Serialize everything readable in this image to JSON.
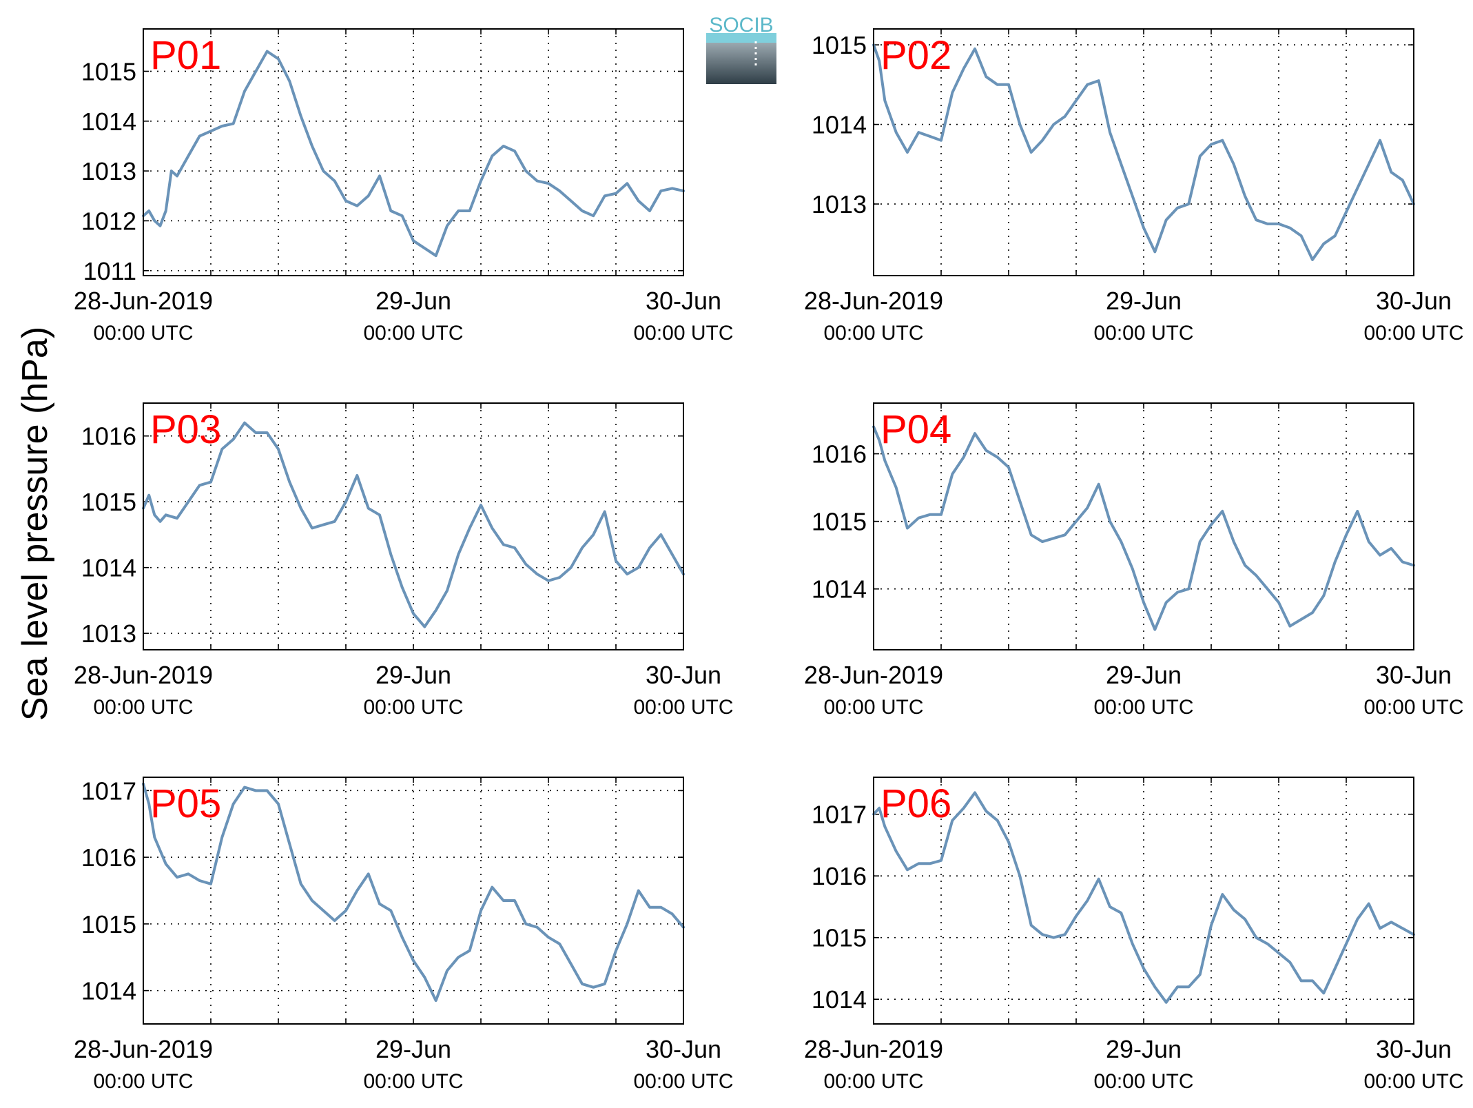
{
  "logo": {
    "text": "SOCIB"
  },
  "ylabel": "Sea level pressure (hPa)",
  "colors": {
    "series": "#6a93b8",
    "panel_label": "#ff0000",
    "axis": "#000000"
  },
  "x_ticks": [
    {
      "line1": "28-Jun-2019",
      "line2": "00:00 UTC"
    },
    {
      "line1": "29-Jun",
      "line2": "00:00 UTC"
    },
    {
      "line1": "30-Jun",
      "line2": "00:00 UTC"
    }
  ],
  "chart_data": [
    {
      "type": "line",
      "label": "P01",
      "xlim": [
        "2019-06-28 00:00",
        "2019-06-30 00:00"
      ],
      "x_unit": "hours since 2019-06-28 00:00 UTC",
      "ylim": [
        1010.9,
        1015.85
      ],
      "yticks": [
        1011,
        1012,
        1013,
        1014,
        1015
      ],
      "grid": true,
      "ylabel": "Sea level pressure (hPa)",
      "x": [
        0,
        0.5,
        1,
        1.5,
        2,
        2.5,
        3,
        4,
        5,
        6,
        7,
        8,
        9,
        10,
        11,
        12,
        13,
        14,
        15,
        16,
        17,
        18,
        19,
        20,
        21,
        22,
        23,
        24,
        25,
        26,
        27,
        28,
        29,
        30,
        31,
        32,
        33,
        34,
        35,
        36,
        37,
        38,
        39,
        40,
        41,
        42,
        43,
        44,
        45,
        46,
        47,
        48
      ],
      "values": [
        1012.1,
        1012.2,
        1012.0,
        1011.9,
        1012.2,
        1013.0,
        1012.9,
        1013.3,
        1013.7,
        1013.8,
        1013.9,
        1013.95,
        1014.6,
        1015.0,
        1015.4,
        1015.25,
        1014.8,
        1014.1,
        1013.5,
        1013.0,
        1012.8,
        1012.4,
        1012.3,
        1012.5,
        1012.9,
        1012.2,
        1012.1,
        1011.6,
        1011.45,
        1011.3,
        1011.9,
        1012.2,
        1012.2,
        1012.8,
        1013.3,
        1013.5,
        1013.4,
        1013.0,
        1012.8,
        1012.75,
        1012.6,
        1012.4,
        1012.2,
        1012.1,
        1012.5,
        1012.55,
        1012.75,
        1012.4,
        1012.2,
        1012.6,
        1012.65,
        1012.6
      ]
    },
    {
      "type": "line",
      "label": "P02",
      "xlim": [
        "2019-06-28 00:00",
        "2019-06-30 00:00"
      ],
      "x_unit": "hours since 2019-06-28 00:00 UTC",
      "ylim": [
        1012.1,
        1015.2
      ],
      "yticks": [
        1013,
        1014,
        1015
      ],
      "grid": true,
      "ylabel": "Sea level pressure (hPa)",
      "x": [
        0,
        0.5,
        1,
        2,
        3,
        4,
        5,
        6,
        7,
        8,
        9,
        10,
        11,
        12,
        13,
        14,
        15,
        16,
        17,
        18,
        19,
        20,
        21,
        22,
        23,
        24,
        25,
        26,
        27,
        28,
        29,
        30,
        31,
        32,
        33,
        34,
        35,
        36,
        37,
        38,
        39,
        40,
        41,
        42,
        43,
        44,
        45,
        46,
        47,
        48
      ],
      "values": [
        1015.0,
        1014.8,
        1014.3,
        1013.9,
        1013.65,
        1013.9,
        1013.85,
        1013.8,
        1014.4,
        1014.7,
        1014.95,
        1014.6,
        1014.5,
        1014.5,
        1014.0,
        1013.65,
        1013.8,
        1014.0,
        1014.1,
        1014.3,
        1014.5,
        1014.55,
        1013.9,
        1013.5,
        1013.1,
        1012.7,
        1012.4,
        1012.8,
        1012.95,
        1013.0,
        1013.6,
        1013.75,
        1013.8,
        1013.5,
        1013.1,
        1012.8,
        1012.75,
        1012.75,
        1012.7,
        1012.6,
        1012.3,
        1012.5,
        1012.6,
        1012.9,
        1013.2,
        1013.5,
        1013.8,
        1013.4,
        1013.3,
        1013.0
      ]
    },
    {
      "type": "line",
      "label": "P03",
      "xlim": [
        "2019-06-28 00:00",
        "2019-06-30 00:00"
      ],
      "x_unit": "hours since 2019-06-28 00:00 UTC",
      "ylim": [
        1012.75,
        1016.5
      ],
      "yticks": [
        1013,
        1014,
        1015,
        1016
      ],
      "grid": true,
      "ylabel": "Sea level pressure (hPa)",
      "x": [
        0,
        0.5,
        1,
        1.5,
        2,
        3,
        4,
        5,
        6,
        7,
        8,
        9,
        10,
        11,
        12,
        13,
        14,
        15,
        16,
        17,
        18,
        19,
        20,
        21,
        22,
        23,
        24,
        25,
        26,
        27,
        28,
        29,
        30,
        31,
        32,
        33,
        34,
        35,
        36,
        37,
        38,
        39,
        40,
        41,
        42,
        43,
        44,
        45,
        46,
        47,
        48
      ],
      "values": [
        1014.9,
        1015.1,
        1014.8,
        1014.7,
        1014.8,
        1014.75,
        1015.0,
        1015.25,
        1015.3,
        1015.8,
        1015.95,
        1016.2,
        1016.05,
        1016.05,
        1015.8,
        1015.3,
        1014.9,
        1014.6,
        1014.65,
        1014.7,
        1015.0,
        1015.4,
        1014.9,
        1014.8,
        1014.2,
        1013.7,
        1013.3,
        1013.1,
        1013.35,
        1013.65,
        1014.2,
        1014.6,
        1014.95,
        1014.6,
        1014.35,
        1014.3,
        1014.05,
        1013.9,
        1013.8,
        1013.85,
        1014.0,
        1014.3,
        1014.5,
        1014.85,
        1014.1,
        1013.9,
        1014.0,
        1014.3,
        1014.5,
        1014.2,
        1013.9
      ]
    },
    {
      "type": "line",
      "label": "P04",
      "xlim": [
        "2019-06-28 00:00",
        "2019-06-30 00:00"
      ],
      "x_unit": "hours since 2019-06-28 00:00 UTC",
      "ylim": [
        1013.1,
        1016.75
      ],
      "yticks": [
        1014,
        1015,
        1016
      ],
      "grid": true,
      "ylabel": "Sea level pressure (hPa)",
      "x": [
        0,
        0.5,
        1,
        2,
        3,
        4,
        5,
        6,
        7,
        8,
        9,
        10,
        11,
        12,
        13,
        14,
        15,
        16,
        17,
        18,
        19,
        20,
        21,
        22,
        23,
        24,
        25,
        26,
        27,
        28,
        29,
        30,
        31,
        32,
        33,
        34,
        35,
        36,
        37,
        38,
        39,
        40,
        41,
        42,
        43,
        44,
        45,
        46,
        47,
        48
      ],
      "values": [
        1016.4,
        1016.2,
        1015.9,
        1015.5,
        1014.9,
        1015.05,
        1015.1,
        1015.1,
        1015.7,
        1015.95,
        1016.3,
        1016.05,
        1015.95,
        1015.8,
        1015.3,
        1014.8,
        1014.7,
        1014.75,
        1014.8,
        1015.0,
        1015.2,
        1015.55,
        1015.0,
        1014.7,
        1014.3,
        1013.8,
        1013.4,
        1013.8,
        1013.95,
        1014.0,
        1014.7,
        1014.95,
        1015.15,
        1014.7,
        1014.35,
        1014.2,
        1014.0,
        1013.8,
        1013.45,
        1013.55,
        1013.65,
        1013.9,
        1014.4,
        1014.8,
        1015.15,
        1014.7,
        1014.5,
        1014.6,
        1014.4,
        1014.35
      ]
    },
    {
      "type": "line",
      "label": "P05",
      "xlim": [
        "2019-06-28 00:00",
        "2019-06-30 00:00"
      ],
      "x_unit": "hours since 2019-06-28 00:00 UTC",
      "ylim": [
        1013.5,
        1017.2
      ],
      "yticks": [
        1014,
        1015,
        1016,
        1017
      ],
      "grid": true,
      "ylabel": "Sea level pressure (hPa)",
      "x": [
        0,
        0.5,
        1,
        2,
        3,
        4,
        5,
        6,
        7,
        8,
        9,
        10,
        11,
        12,
        13,
        14,
        15,
        16,
        17,
        18,
        19,
        20,
        21,
        22,
        23,
        24,
        25,
        26,
        27,
        28,
        29,
        30,
        31,
        32,
        33,
        34,
        35,
        36,
        37,
        38,
        39,
        40,
        41,
        42,
        43,
        44,
        45,
        46,
        47,
        48
      ],
      "values": [
        1017.1,
        1016.8,
        1016.3,
        1015.9,
        1015.7,
        1015.75,
        1015.65,
        1015.6,
        1016.3,
        1016.8,
        1017.05,
        1017.0,
        1017.0,
        1016.8,
        1016.2,
        1015.6,
        1015.35,
        1015.2,
        1015.05,
        1015.2,
        1015.5,
        1015.75,
        1015.3,
        1015.2,
        1014.8,
        1014.45,
        1014.2,
        1013.85,
        1014.3,
        1014.5,
        1014.6,
        1015.2,
        1015.55,
        1015.35,
        1015.35,
        1015.0,
        1014.95,
        1014.8,
        1014.7,
        1014.4,
        1014.1,
        1014.05,
        1014.1,
        1014.6,
        1015.0,
        1015.5,
        1015.25,
        1015.25,
        1015.15,
        1014.95
      ]
    },
    {
      "type": "line",
      "label": "P06",
      "xlim": [
        "2019-06-28 00:00",
        "2019-06-30 00:00"
      ],
      "x_unit": "hours since 2019-06-28 00:00 UTC",
      "ylim": [
        1013.6,
        1017.6
      ],
      "yticks": [
        1014,
        1015,
        1016,
        1017
      ],
      "grid": true,
      "ylabel": "Sea level pressure (hPa)",
      "x": [
        0,
        0.5,
        1,
        2,
        3,
        4,
        5,
        6,
        7,
        8,
        9,
        10,
        11,
        12,
        13,
        14,
        15,
        16,
        17,
        18,
        19,
        20,
        21,
        22,
        23,
        24,
        25,
        26,
        27,
        28,
        29,
        30,
        31,
        32,
        33,
        34,
        35,
        36,
        37,
        38,
        39,
        40,
        41,
        42,
        43,
        44,
        45,
        46,
        47,
        48
      ],
      "values": [
        1017.0,
        1017.1,
        1016.8,
        1016.4,
        1016.1,
        1016.2,
        1016.2,
        1016.25,
        1016.9,
        1017.1,
        1017.35,
        1017.05,
        1016.9,
        1016.55,
        1016.0,
        1015.2,
        1015.05,
        1015.0,
        1015.05,
        1015.35,
        1015.6,
        1015.95,
        1015.5,
        1015.4,
        1014.9,
        1014.5,
        1014.2,
        1013.95,
        1014.2,
        1014.2,
        1014.4,
        1015.2,
        1015.7,
        1015.45,
        1015.3,
        1015.0,
        1014.9,
        1014.75,
        1014.6,
        1014.3,
        1014.3,
        1014.1,
        1014.5,
        1014.9,
        1015.3,
        1015.55,
        1015.15,
        1015.25,
        1015.15,
        1015.05
      ]
    }
  ]
}
